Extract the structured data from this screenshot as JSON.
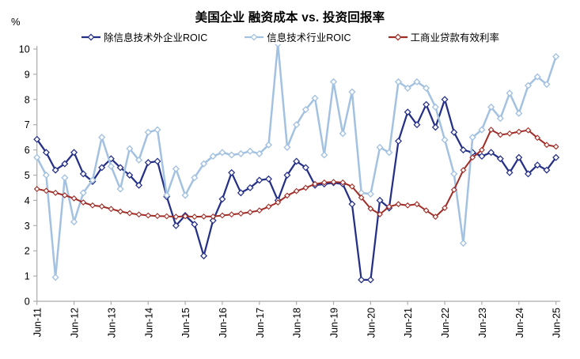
{
  "chart_data": {
    "type": "line",
    "title": "美国企业 融资成本 vs. 投资回报率",
    "y_unit": "%",
    "ylim": [
      0,
      10
    ],
    "y_ticks": [
      0,
      1,
      2,
      3,
      4,
      5,
      6,
      7,
      8,
      9,
      10
    ],
    "grid": false,
    "legend_position": "top",
    "x_frequency": "quarterly",
    "points_per_tick": 4,
    "x_tick_labels": [
      "Jun-11",
      "Jun-12",
      "Jun-13",
      "Jun-14",
      "Jun-15",
      "Jun-16",
      "Jun-17",
      "Jun-18",
      "Jun-19",
      "Jun-20",
      "Jun-21",
      "Jun-22",
      "Jun-23",
      "Jun-24",
      "Jun-25"
    ],
    "series": [
      {
        "name": "除信息技术外企业ROIC",
        "color": "#242F87",
        "marker": "diamond",
        "line_width": 2.25,
        "values": [
          6.42,
          5.9,
          5.2,
          5.45,
          5.9,
          5.05,
          4.75,
          5.3,
          5.65,
          5.3,
          5.0,
          4.6,
          5.5,
          5.55,
          4.15,
          3.0,
          3.4,
          3.05,
          1.8,
          3.2,
          4.05,
          5.1,
          4.3,
          4.5,
          4.8,
          4.85,
          4.0,
          5.0,
          5.55,
          5.3,
          4.6,
          4.65,
          4.7,
          4.65,
          3.85,
          0.85,
          0.85,
          4.0,
          3.7,
          6.35,
          7.5,
          7.0,
          7.8,
          6.9,
          8.0,
          6.7,
          6.0,
          5.9,
          5.75,
          5.9,
          5.65,
          5.1,
          5.7,
          5.05,
          5.4,
          5.2,
          5.7
        ]
      },
      {
        "name": "信息技术行业ROIC",
        "color": "#A3C1E0",
        "marker": "diamond",
        "line_width": 2.5,
        "values": [
          5.7,
          5.0,
          0.95,
          4.9,
          3.15,
          4.3,
          4.8,
          6.5,
          5.35,
          4.45,
          6.05,
          5.6,
          6.7,
          6.8,
          4.2,
          5.25,
          4.2,
          4.9,
          5.45,
          5.75,
          5.9,
          5.8,
          5.85,
          5.95,
          5.85,
          6.2,
          10.2,
          6.1,
          7.0,
          7.6,
          8.05,
          5.8,
          8.7,
          6.65,
          8.3,
          4.3,
          4.25,
          6.1,
          5.9,
          8.7,
          8.45,
          8.7,
          8.45,
          7.7,
          6.4,
          5.05,
          2.3,
          6.5,
          6.8,
          7.7,
          7.25,
          8.25,
          7.45,
          8.55,
          8.9,
          8.6,
          9.7
        ]
      },
      {
        "name": "工商业贷款有效利率",
        "color": "#A02C26",
        "marker": "diamond",
        "line_width": 2,
        "values": [
          4.45,
          4.38,
          4.3,
          4.2,
          4.08,
          3.92,
          3.8,
          3.76,
          3.66,
          3.56,
          3.49,
          3.44,
          3.4,
          3.38,
          3.37,
          3.35,
          3.37,
          3.35,
          3.36,
          3.36,
          3.4,
          3.44,
          3.48,
          3.53,
          3.6,
          3.75,
          3.92,
          4.19,
          4.37,
          4.5,
          4.65,
          4.71,
          4.73,
          4.71,
          4.55,
          4.11,
          3.67,
          3.45,
          3.75,
          3.85,
          3.8,
          3.85,
          3.6,
          3.35,
          3.7,
          4.42,
          5.2,
          5.7,
          6.0,
          6.8,
          6.6,
          6.65,
          6.72,
          6.78,
          6.48,
          6.2,
          6.13
        ]
      }
    ],
    "axis_color": "#ABABAB",
    "tick_label_color": "#000000"
  }
}
